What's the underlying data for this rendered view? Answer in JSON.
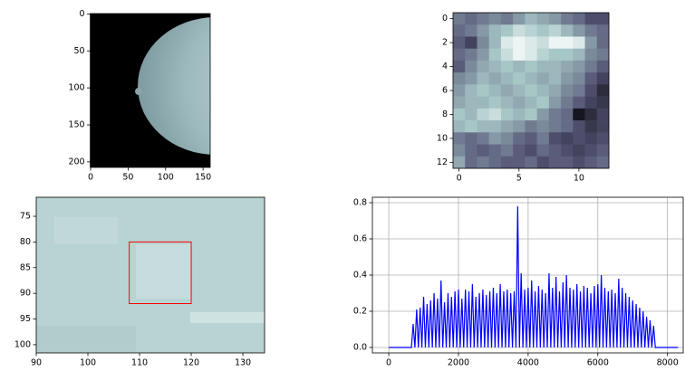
{
  "chart_data": [
    {
      "type": "image",
      "xlim": [
        -0.5,
        159.5
      ],
      "ylim": [
        207.5,
        -0.5
      ],
      "xticks": [
        0,
        50,
        100,
        150
      ],
      "yticks": [
        0,
        50,
        100,
        150,
        200
      ]
    },
    {
      "type": "heatmap",
      "xlim": [
        -0.5,
        12.5
      ],
      "ylim": [
        12.5,
        -0.5
      ],
      "xticks": [
        0,
        5,
        10
      ],
      "yticks": [
        0,
        2,
        4,
        6,
        8,
        10,
        12
      ],
      "values": [
        [
          0.5,
          0.45,
          0.5,
          0.55,
          0.5,
          0.6,
          0.7,
          0.65,
          0.6,
          0.5,
          0.45,
          0.35,
          0.35
        ],
        [
          0.45,
          0.5,
          0.6,
          0.7,
          0.75,
          0.85,
          0.8,
          0.75,
          0.8,
          0.7,
          0.6,
          0.5,
          0.45
        ],
        [
          0.4,
          0.3,
          0.55,
          0.7,
          0.9,
          0.95,
          0.9,
          0.85,
          0.95,
          0.95,
          0.9,
          0.6,
          0.45
        ],
        [
          0.45,
          0.5,
          0.6,
          0.75,
          0.85,
          0.95,
          0.9,
          0.8,
          0.75,
          0.75,
          0.7,
          0.55,
          0.5
        ],
        [
          0.4,
          0.55,
          0.65,
          0.7,
          0.75,
          0.7,
          0.75,
          0.7,
          0.7,
          0.65,
          0.6,
          0.5,
          0.4
        ],
        [
          0.55,
          0.6,
          0.7,
          0.65,
          0.7,
          0.75,
          0.7,
          0.65,
          0.7,
          0.6,
          0.55,
          0.4,
          0.3
        ],
        [
          0.6,
          0.7,
          0.75,
          0.7,
          0.65,
          0.7,
          0.75,
          0.7,
          0.65,
          0.55,
          0.5,
          0.35,
          0.2
        ],
        [
          0.65,
          0.7,
          0.7,
          0.75,
          0.7,
          0.65,
          0.7,
          0.75,
          0.6,
          0.5,
          0.4,
          0.3,
          0.25
        ],
        [
          0.75,
          0.7,
          0.8,
          0.85,
          0.75,
          0.7,
          0.75,
          0.6,
          0.5,
          0.45,
          0.1,
          0.2,
          0.3
        ],
        [
          0.7,
          0.75,
          0.7,
          0.7,
          0.65,
          0.6,
          0.5,
          0.55,
          0.5,
          0.45,
          0.35,
          0.25,
          0.3
        ],
        [
          0.5,
          0.45,
          0.5,
          0.6,
          0.55,
          0.45,
          0.4,
          0.5,
          0.35,
          0.3,
          0.35,
          0.3,
          0.35
        ],
        [
          0.55,
          0.45,
          0.4,
          0.45,
          0.5,
          0.4,
          0.35,
          0.45,
          0.4,
          0.35,
          0.3,
          0.35,
          0.4
        ],
        [
          0.65,
          0.45,
          0.5,
          0.45,
          0.4,
          0.4,
          0.45,
          0.35,
          0.4,
          0.4,
          0.35,
          0.4,
          0.45
        ]
      ]
    },
    {
      "type": "image",
      "xlim": [
        90,
        134.2
      ],
      "ylim": [
        101.6,
        71.3
      ],
      "xticks": [
        90,
        100,
        110,
        120,
        130
      ],
      "yticks": [
        75,
        80,
        85,
        90,
        95,
        100
      ],
      "rect": {
        "x": [
          108,
          120
        ],
        "y": [
          80,
          92
        ],
        "color": "red"
      }
    },
    {
      "type": "line",
      "color": "blue",
      "grid": true,
      "xlim": [
        -470,
        8450
      ],
      "ylim": [
        -0.03,
        0.83
      ],
      "xticks": [
        0,
        2000,
        4000,
        6000,
        8000
      ],
      "yticks": [
        {
          "value": 0,
          "label": "0.0"
        },
        {
          "value": 0.2,
          "label": "0.2"
        },
        {
          "value": 0.4,
          "label": "0.4"
        },
        {
          "value": 0.6,
          "label": "0.6"
        },
        {
          "value": 0.8,
          "label": "0.8"
        }
      ],
      "x": [
        0,
        650,
        700,
        750,
        800,
        850,
        900,
        950,
        1000,
        1050,
        1100,
        1150,
        1200,
        1250,
        1300,
        1350,
        1400,
        1450,
        1500,
        1550,
        1600,
        1650,
        1700,
        1750,
        1800,
        1850,
        1900,
        1950,
        2000,
        2050,
        2100,
        2150,
        2200,
        2250,
        2300,
        2350,
        2400,
        2450,
        2500,
        2550,
        2600,
        2650,
        2700,
        2750,
        2800,
        2850,
        2900,
        2950,
        3000,
        3050,
        3100,
        3150,
        3200,
        3250,
        3300,
        3350,
        3400,
        3450,
        3500,
        3550,
        3600,
        3650,
        3700,
        3750,
        3800,
        3850,
        3900,
        3950,
        4000,
        4050,
        4100,
        4150,
        4200,
        4250,
        4300,
        4350,
        4400,
        4450,
        4500,
        4550,
        4600,
        4650,
        4700,
        4750,
        4800,
        4850,
        4900,
        4950,
        5000,
        5050,
        5100,
        5150,
        5200,
        5250,
        5300,
        5350,
        5400,
        5450,
        5500,
        5550,
        5600,
        5650,
        5700,
        5750,
        5800,
        5850,
        5900,
        5950,
        6000,
        6050,
        6100,
        6150,
        6200,
        6250,
        6300,
        6350,
        6400,
        6450,
        6500,
        6550,
        6600,
        6650,
        6700,
        6750,
        6800,
        6850,
        6900,
        6950,
        7000,
        7050,
        7100,
        7150,
        7200,
        7250,
        7300,
        7350,
        7400,
        7450,
        7500,
        7550,
        7600,
        7650,
        8300
      ],
      "values": [
        0,
        0,
        0.13,
        0,
        0.21,
        0,
        0.22,
        0,
        0.28,
        0,
        0.24,
        0,
        0.26,
        0,
        0.3,
        0,
        0.27,
        0,
        0.37,
        0,
        0.25,
        0,
        0.3,
        0,
        0.28,
        0,
        0.31,
        0,
        0.32,
        0,
        0.27,
        0,
        0.32,
        0,
        0.31,
        0,
        0.35,
        0,
        0.28,
        0,
        0.3,
        0,
        0.32,
        0,
        0.29,
        0,
        0.31,
        0,
        0.33,
        0,
        0.3,
        0,
        0.35,
        0,
        0.31,
        0,
        0.32,
        0,
        0.3,
        0,
        0.31,
        0,
        0.78,
        0,
        0.41,
        0,
        0.32,
        0,
        0.33,
        0,
        0.37,
        0,
        0.31,
        0,
        0.34,
        0,
        0.32,
        0,
        0.3,
        0,
        0.41,
        0,
        0.33,
        0,
        0.39,
        0,
        0.31,
        0,
        0.36,
        0,
        0.4,
        0,
        0.33,
        0,
        0.32,
        0,
        0.35,
        0,
        0.31,
        0,
        0.34,
        0,
        0.33,
        0,
        0.3,
        0,
        0.34,
        0,
        0.35,
        0,
        0.4,
        0,
        0.33,
        0,
        0.31,
        0,
        0.32,
        0,
        0.3,
        0,
        0.38,
        0,
        0.33,
        0,
        0.3,
        0,
        0.28,
        0,
        0.26,
        0,
        0.24,
        0,
        0.22,
        0,
        0.2,
        0,
        0.17,
        0,
        0.15,
        0,
        0.12,
        0,
        0
      ]
    }
  ]
}
